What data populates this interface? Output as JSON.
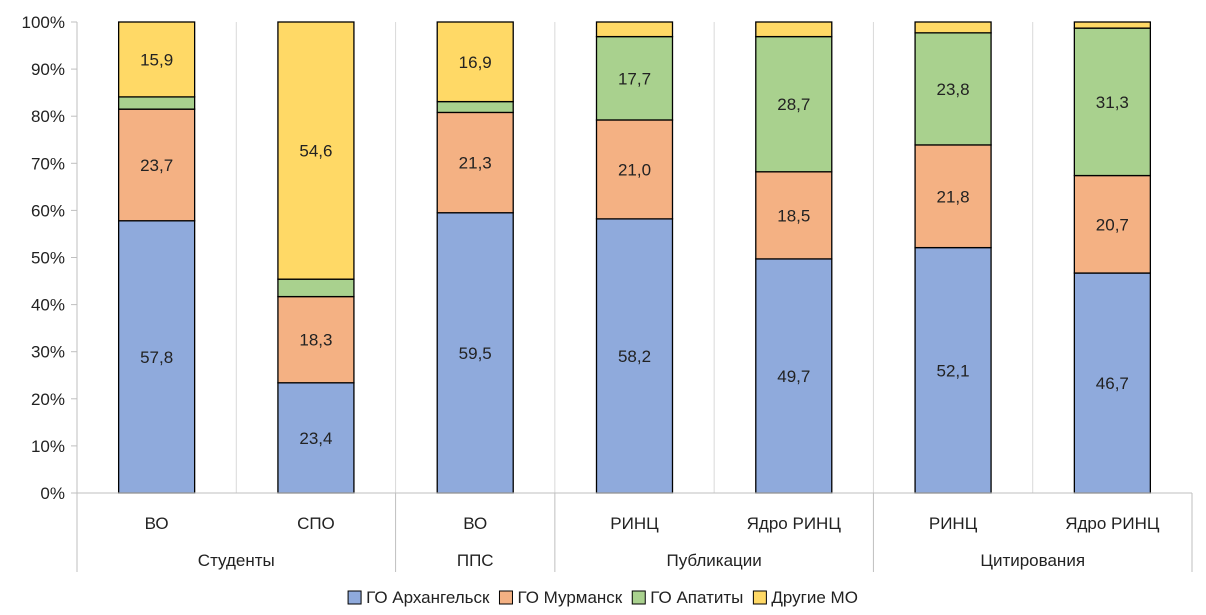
{
  "chart_data": {
    "type": "bar",
    "stacked": "percent",
    "ylim": [
      0,
      100
    ],
    "yticks": [
      "0%",
      "10%",
      "20%",
      "30%",
      "40%",
      "50%",
      "60%",
      "70%",
      "80%",
      "90%",
      "100%"
    ],
    "categories": [
      "ВО",
      "СПО",
      "ВО",
      "РИНЦ",
      "Ядро РИНЦ",
      "РИНЦ",
      "Ядро РИНЦ"
    ],
    "groups": [
      {
        "label": "Студенты",
        "span": 2
      },
      {
        "label": "ППС",
        "span": 1
      },
      {
        "label": "Публикации",
        "span": 2
      },
      {
        "label": "Цитирования",
        "span": 2
      }
    ],
    "series": [
      {
        "name": "ГО Архангельск",
        "color": "#8faadc",
        "values": [
          57.8,
          23.4,
          59.5,
          58.2,
          49.7,
          52.1,
          46.7
        ],
        "labels": [
          "57,8",
          "23,4",
          "59,5",
          "58,2",
          "49,7",
          "52,1",
          "46,7"
        ]
      },
      {
        "name": "ГО Мурманск",
        "color": "#f4b183",
        "values": [
          23.7,
          18.3,
          21.3,
          21.0,
          18.5,
          21.8,
          20.7
        ],
        "labels": [
          "23,7",
          "18,3",
          "21,3",
          "21,0",
          "18,5",
          "21,8",
          "20,7"
        ]
      },
      {
        "name": "ГО Апатиты",
        "color": "#a9d18e",
        "values": [
          2.6,
          3.7,
          2.3,
          17.7,
          28.7,
          23.8,
          31.3
        ],
        "labels": [
          "",
          "",
          "",
          "17,7",
          "28,7",
          "23,8",
          "31,3"
        ]
      },
      {
        "name": "Другие МО",
        "color": "#ffd966",
        "values": [
          15.9,
          54.6,
          16.9,
          3.1,
          3.1,
          2.3,
          1.3
        ],
        "labels": [
          "15,9",
          "54,6",
          "16,9",
          "",
          "",
          "",
          ""
        ]
      }
    ],
    "legend_position": "bottom",
    "grid": "vertical separators between categories"
  }
}
